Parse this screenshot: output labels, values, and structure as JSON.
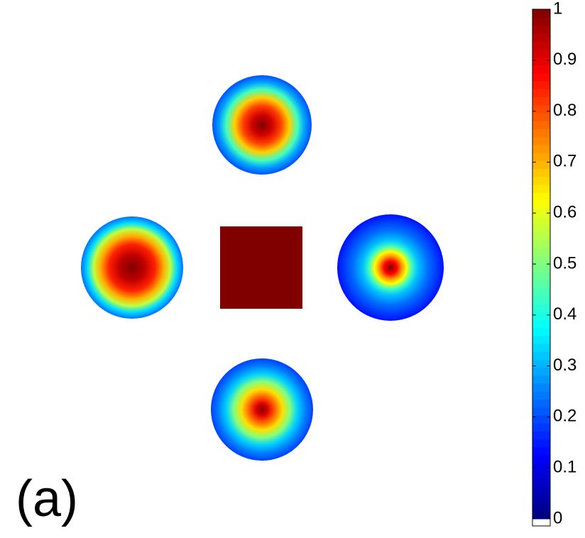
{
  "chart_data": {
    "type": "colormap",
    "panel_label": "(a)",
    "colormap": "jet",
    "clim": [
      0,
      1
    ],
    "cticks": [
      0,
      0.1,
      0.2,
      0.3,
      0.4,
      0.5,
      0.6,
      0.7,
      0.8,
      0.9,
      1
    ]
  }
}
